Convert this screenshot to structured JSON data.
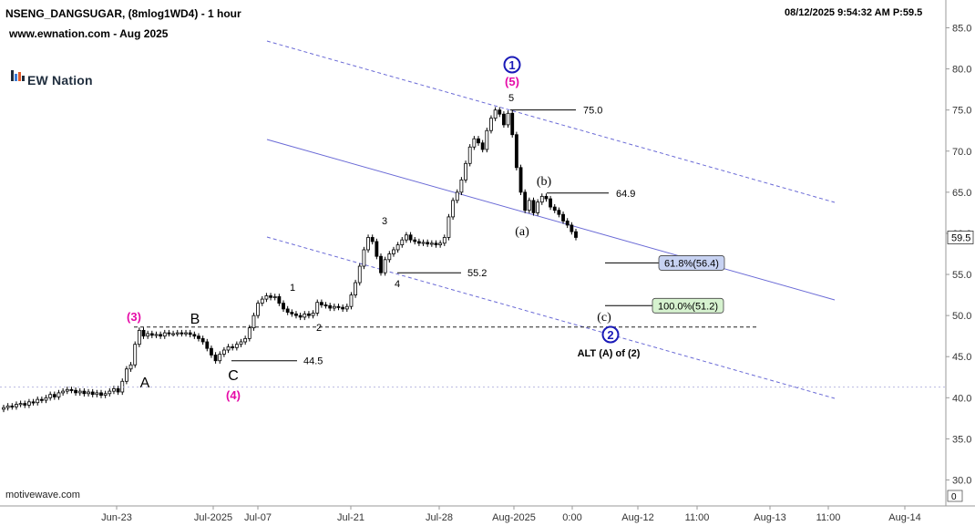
{
  "header": {
    "symbol_line": "NSENG_DANGSUGAR, (8mlog1WD4) - 1 hour",
    "site_line": "www.ewnation.com  - Aug 2025",
    "timestamp": "08/12/2025 9:54:32 AM  P:59.5"
  },
  "logo": {
    "text": "EW Nation"
  },
  "watermark": "motivewave.com",
  "colors": {
    "pink": "#e60aa8",
    "navy": "#1a1ab8",
    "channel": "#6a6ad6",
    "fib_blue_fill": "#c7d2f2",
    "fib_green_fill": "#d6f2cf"
  },
  "chart_data": {
    "type": "candlestick",
    "ylim": [
      29,
      87
    ],
    "y_ticks": [
      "85.0",
      "80.0",
      "75.0",
      "70.0",
      "65.0",
      "60.0",
      "55.0",
      "50.0",
      "45.0",
      "40.0",
      "35.0",
      "30.0"
    ],
    "x_ticks": [
      "Jun-23",
      "Jul-2025",
      "Jul-07",
      "Jul-21",
      "Jul-28",
      "Aug-2025",
      "0:00",
      "Aug-12",
      "11:00",
      "Aug-13",
      "11:00",
      "Aug-14"
    ],
    "last_price": "59.5",
    "scale_bottom_label": "0",
    "closes": [
      38.8,
      39.0,
      38.9,
      39.2,
      39.3,
      39.1,
      39.5,
      39.4,
      39.8,
      39.7,
      40.0,
      40.4,
      40.1,
      40.6,
      40.8,
      41.0,
      40.9,
      40.6,
      40.8,
      40.5,
      40.7,
      40.4,
      40.6,
      40.3,
      40.5,
      40.8,
      41.1,
      40.7,
      42.0,
      43.5,
      44.0,
      46.5,
      48.2,
      47.5,
      47.8,
      47.6,
      47.7,
      47.5,
      47.9,
      47.8,
      47.8,
      47.9,
      47.8,
      47.9,
      47.7,
      47.5,
      47.2,
      46.8,
      46.0,
      45.2,
      44.5,
      45.3,
      45.8,
      46.2,
      46.1,
      46.5,
      46.8,
      47.2,
      48.5,
      50.0,
      51.5,
      52.0,
      52.4,
      52.2,
      52.3,
      51.5,
      50.8,
      50.4,
      50.2,
      50.0,
      49.8,
      50.2,
      50.0,
      50.3,
      51.6,
      51.3,
      51.2,
      50.9,
      51.1,
      51.0,
      50.8,
      51.1,
      52.5,
      54.0,
      56.0,
      58.0,
      59.5,
      59.0,
      57.2,
      55.2,
      56.8,
      57.5,
      58.0,
      58.6,
      59.2,
      59.8,
      59.2,
      59.0,
      58.8,
      58.9,
      58.7,
      58.8,
      58.6,
      58.8,
      59.5,
      62.0,
      64.0,
      65.0,
      66.5,
      68.5,
      70.5,
      71.5,
      71.0,
      70.2,
      72.5,
      74.0,
      75.0,
      74.5,
      73.2,
      74.6,
      72.0,
      68.0,
      65.0,
      62.8,
      64.0,
      62.5,
      63.8,
      64.5,
      64.2,
      63.2,
      62.8,
      62.3,
      61.5,
      61.0,
      60.2,
      59.5
    ],
    "levels": [
      {
        "label": "75.0",
        "value": 75.0
      },
      {
        "label": "64.9",
        "value": 64.9
      },
      {
        "label": "55.2",
        "value": 55.2
      },
      {
        "label": "44.5",
        "value": 44.5
      }
    ],
    "fib_targets": [
      {
        "label": "61.8%(56.4)",
        "value": 56.4
      },
      {
        "label": "100.0%(51.2)",
        "value": 51.2
      }
    ],
    "wave_labels": [
      "(3)",
      "B",
      "A",
      "C",
      "(4)",
      "1",
      "2",
      "3",
      "4",
      "5",
      "(5)",
      "1",
      "(a)",
      "(b)",
      "(c)",
      "2",
      "ALT (A) of (2)"
    ]
  }
}
